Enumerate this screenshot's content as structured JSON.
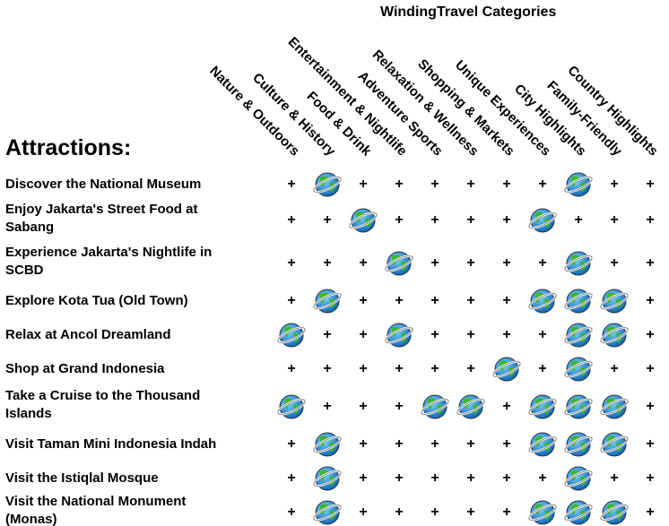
{
  "header": {
    "title": "WindingTravel Categories",
    "attractions_label": "Attractions:"
  },
  "icons": {
    "selected": "globe-icon",
    "unselected": "plus-icon",
    "unselected_glyph": "+"
  },
  "categories": [
    "Nature & Outdoors",
    "Culture & History",
    "Food & Drink",
    "Entertainment & Nightlife",
    "Adventure Sports",
    "Relaxation & Wellness",
    "Shopping & Markets",
    "Unique Experiences",
    "City Highlights",
    "Family-Friendly",
    "Country Highlights"
  ],
  "rows": [
    {
      "name": "Discover the National Museum",
      "selected": [
        0,
        1,
        0,
        0,
        0,
        0,
        0,
        0,
        1,
        0,
        0
      ]
    },
    {
      "name": "Enjoy Jakarta's Street Food at Sabang",
      "selected": [
        0,
        0,
        1,
        0,
        0,
        0,
        0,
        1,
        0,
        0,
        0
      ]
    },
    {
      "name": "Experience Jakarta's Nightlife in SCBD",
      "selected": [
        0,
        0,
        0,
        1,
        0,
        0,
        0,
        0,
        1,
        0,
        0
      ]
    },
    {
      "name": "Explore Kota Tua (Old Town)",
      "selected": [
        0,
        1,
        0,
        0,
        0,
        0,
        0,
        1,
        1,
        1,
        0
      ]
    },
    {
      "name": "Relax at Ancol Dreamland",
      "selected": [
        1,
        0,
        0,
        1,
        0,
        0,
        0,
        0,
        1,
        1,
        0
      ]
    },
    {
      "name": "Shop at Grand Indonesia",
      "selected": [
        0,
        0,
        0,
        0,
        0,
        0,
        1,
        0,
        1,
        0,
        0
      ]
    },
    {
      "name": "Take a Cruise to the Thousand Islands",
      "selected": [
        1,
        0,
        0,
        0,
        1,
        1,
        0,
        1,
        1,
        1,
        0
      ]
    },
    {
      "name": "Visit Taman Mini Indonesia Indah",
      "selected": [
        0,
        1,
        0,
        0,
        0,
        0,
        0,
        1,
        1,
        1,
        0
      ]
    },
    {
      "name": "Visit the Istiqlal Mosque",
      "selected": [
        0,
        1,
        0,
        0,
        0,
        0,
        0,
        0,
        1,
        0,
        0
      ]
    },
    {
      "name": "Visit the National Monument (Monas)",
      "selected": [
        0,
        1,
        0,
        0,
        0,
        0,
        0,
        1,
        1,
        1,
        0
      ]
    }
  ]
}
